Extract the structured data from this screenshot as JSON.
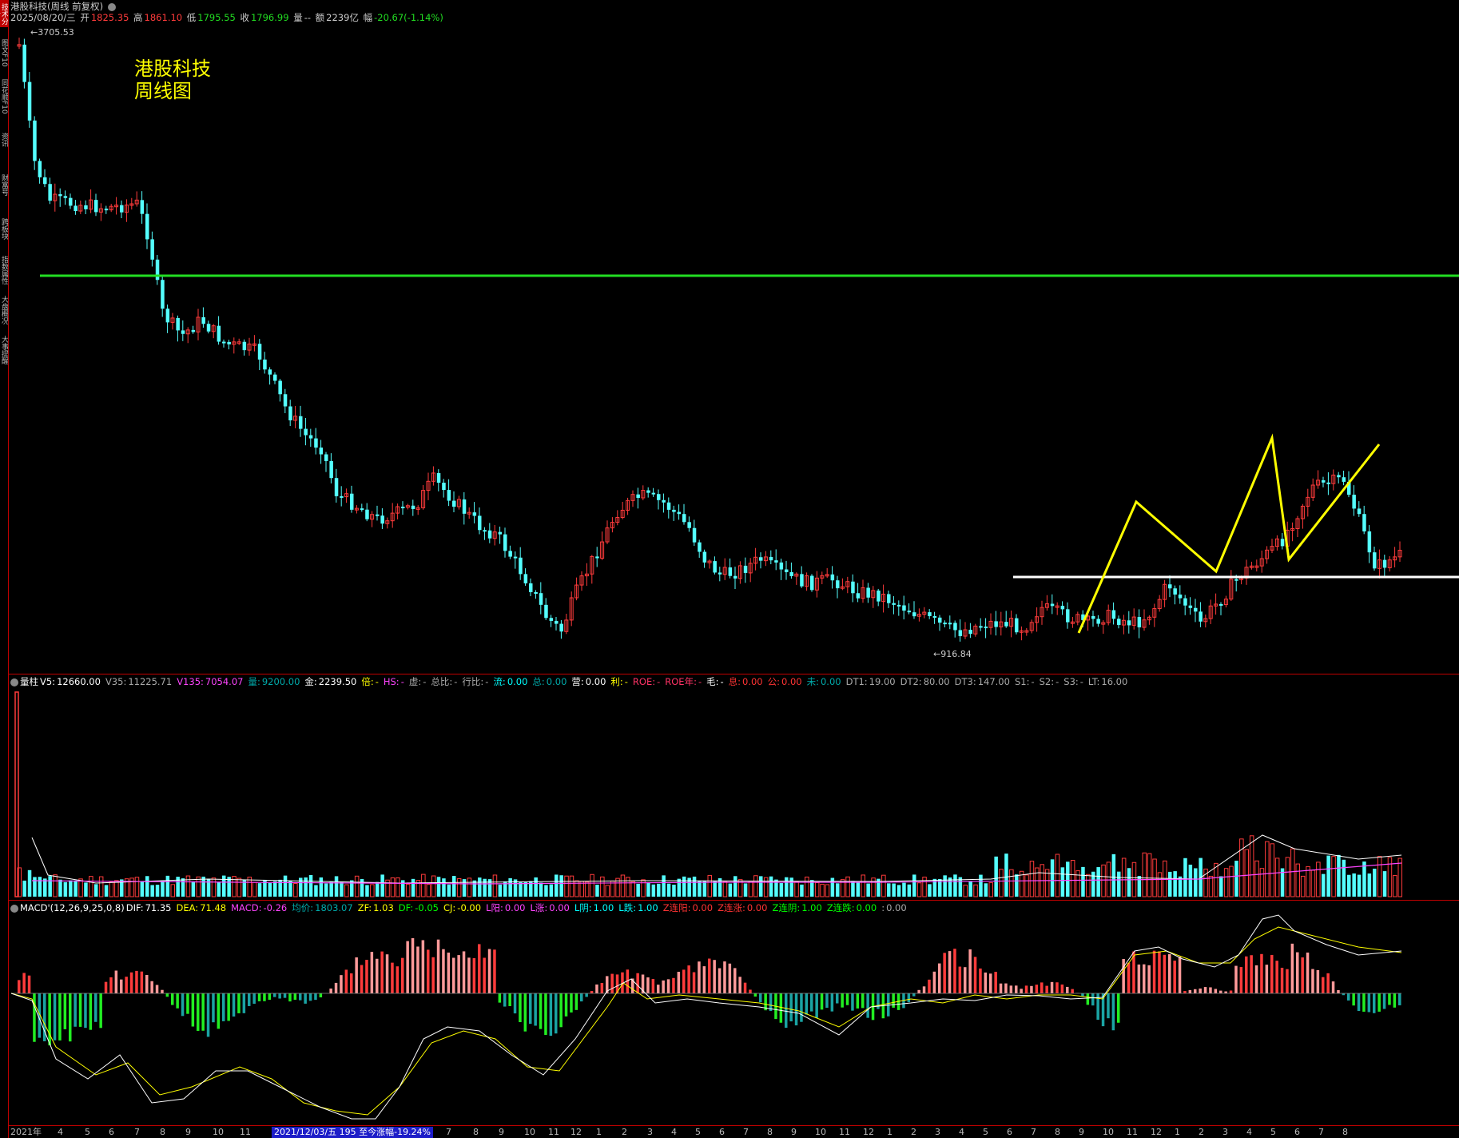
{
  "header": {
    "title": "港股科技(周线 前复权)",
    "date": "2025/08/20/三",
    "open_label": "开",
    "open": "1825.35",
    "high_label": "高",
    "high": "1861.10",
    "low_label": "低",
    "low": "1795.55",
    "close_label": "收",
    "close": "1796.99",
    "volume_label": "量",
    "volume": "--",
    "amount_label": "额",
    "amount": "2239亿",
    "change_label": "幅",
    "change": "-20.67(-1.14%)"
  },
  "side_tabs": [
    "技术分析",
    "图文F10",
    "同花顺F10",
    "资讯",
    "财富号",
    "跨板块",
    "指数属性",
    "大盘概况",
    "大事提醒"
  ],
  "annotation": {
    "line1": "港股科技",
    "line2": "周线图"
  },
  "price_markers": {
    "max": "3705.53",
    "min": "916.84"
  },
  "volume_panel": {
    "items": [
      {
        "label": "量柱",
        "value": "",
        "color": "#ffffff"
      },
      {
        "label": "V5:",
        "value": "12660.00",
        "color": "#ffffff"
      },
      {
        "label": "V35:",
        "value": "11225.71",
        "color": "#aaaaaa"
      },
      {
        "label": "V135:",
        "value": "7054.07",
        "color": "#ff44ff"
      },
      {
        "label": "量:",
        "value": "9200.00",
        "color": "#00aaaa"
      },
      {
        "label": "金:",
        "value": "2239.50",
        "color": "#ffffff"
      },
      {
        "label": "倍:",
        "value": "-",
        "color": "#ffff00"
      },
      {
        "label": "HS:",
        "value": "-",
        "color": "#ff44ff"
      },
      {
        "label": "虚:",
        "value": "-",
        "color": "#aaaaaa"
      },
      {
        "label": "总比:",
        "value": "-",
        "color": "#aaaaaa"
      },
      {
        "label": "行比:",
        "value": "-",
        "color": "#aaaaaa"
      },
      {
        "label": "流:",
        "value": "0.00",
        "color": "#00ffff"
      },
      {
        "label": "总:",
        "value": "0.00",
        "color": "#00aaaa"
      },
      {
        "label": "营:",
        "value": "0.00",
        "color": "#ffffff"
      },
      {
        "label": "利:",
        "value": "-",
        "color": "#ffff00"
      },
      {
        "label": "ROE:",
        "value": "-",
        "color": "#ff3366"
      },
      {
        "label": "ROE年:",
        "value": "-",
        "color": "#ff3366"
      },
      {
        "label": "毛:",
        "value": "-",
        "color": "#ffffff"
      },
      {
        "label": "息:",
        "value": "0.00",
        "color": "#ff3333"
      },
      {
        "label": "公:",
        "value": "0.00",
        "color": "#ff3333"
      },
      {
        "label": "未:",
        "value": "0.00",
        "color": "#00aaaa"
      },
      {
        "label": "DT1:",
        "value": "19.00",
        "color": "#aaaaaa"
      },
      {
        "label": "DT2:",
        "value": "80.00",
        "color": "#aaaaaa"
      },
      {
        "label": "DT3:",
        "value": "147.00",
        "color": "#aaaaaa"
      },
      {
        "label": "S1:",
        "value": "-",
        "color": "#aaaaaa"
      },
      {
        "label": "S2:",
        "value": "-",
        "color": "#aaaaaa"
      },
      {
        "label": "S3:",
        "value": "-",
        "color": "#aaaaaa"
      },
      {
        "label": "LT:",
        "value": "16.00",
        "color": "#aaaaaa"
      }
    ]
  },
  "macd_panel": {
    "items": [
      {
        "label": "MACD'(12,26,9,25,0,8)",
        "value": "",
        "color": "#ffffff"
      },
      {
        "label": "DIF:",
        "value": "71.35",
        "color": "#ffffff"
      },
      {
        "label": "DEA:",
        "value": "71.48",
        "color": "#ffff00"
      },
      {
        "label": "MACD:",
        "value": "-0.26",
        "color": "#ff44ff"
      },
      {
        "label": "均价:",
        "value": "1803.07",
        "color": "#00aaaa"
      },
      {
        "label": "ZF:",
        "value": "1.03",
        "color": "#ffff00"
      },
      {
        "label": "DF:",
        "value": "-0.05",
        "color": "#00ff00"
      },
      {
        "label": "CJ:",
        "value": "-0.00",
        "color": "#ffff00"
      },
      {
        "label": "L阳:",
        "value": "0.00",
        "color": "#ff44ff"
      },
      {
        "label": "L涨:",
        "value": "0.00",
        "color": "#ff44ff"
      },
      {
        "label": "L阴:",
        "value": "1.00",
        "color": "#00ffff"
      },
      {
        "label": "L跌:",
        "value": "1.00",
        "color": "#00ffff"
      },
      {
        "label": "Z连阳:",
        "value": "0.00",
        "color": "#ff3333"
      },
      {
        "label": "Z连涨:",
        "value": "0.00",
        "color": "#ff3333"
      },
      {
        "label": "Z连阴:",
        "value": "1.00",
        "color": "#00ff00"
      },
      {
        "label": "Z连跌:",
        "value": "0.00",
        "color": "#00ff00"
      },
      {
        "label": ":",
        "value": "0.00",
        "color": "#aaaaaa"
      }
    ]
  },
  "date_axis": {
    "labels": [
      "2021年",
      "4",
      "5",
      "6",
      "7",
      "8",
      "9",
      "10",
      "11",
      "7",
      "8",
      "9",
      "10",
      "11",
      "12",
      "1",
      "2",
      "3",
      "4",
      "5",
      "6",
      "7",
      "8",
      "9",
      "10",
      "11",
      "12",
      "1",
      "2",
      "3",
      "4",
      "5",
      "6",
      "7",
      "8",
      "9",
      "10",
      "11",
      "12",
      "1",
      "2",
      "3",
      "4",
      "5",
      "6",
      "7",
      "8"
    ],
    "highlight": "2021/12/03/五 195 至今涨幅-19.24%"
  },
  "colors": {
    "up": "#ff3b3b",
    "down": "#54ffff",
    "support_line": "#22dd22",
    "white_line": "#ffffff",
    "zigzag": "#ffff00",
    "separator": "#c00000"
  },
  "chart_data": {
    "type": "candlestick",
    "period": "weekly",
    "series": [
      {
        "name": "港股科技",
        "close_path": [
          3705.53,
          3100,
          2750,
          2600,
          2450,
          2300,
          2050,
          1850,
          1650,
          1500,
          1250,
          1150,
          950,
          916.84,
          1300,
          1250,
          1050,
          1120,
          1280,
          1150,
          1100,
          950,
          1050,
          1350,
          1600,
          1400,
          1700,
          1900,
          1796.99
        ]
      }
    ],
    "price_markers": {
      "max": 3705.53,
      "min": 916.84
    }
  }
}
